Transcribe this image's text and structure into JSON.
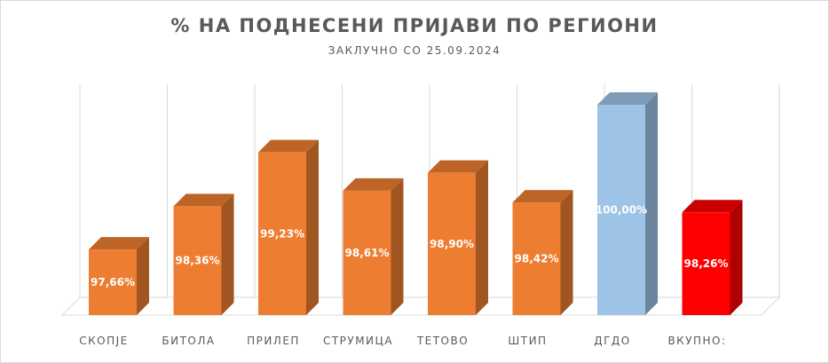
{
  "chart_data": {
    "type": "bar",
    "title": "% НА ПОДНЕСЕНИ ПРИЈАВИ ПО РЕГИОНИ",
    "subtitle": "ЗАКЛУЧНО СО 25.09.2024",
    "categories": [
      "СКОПЈЕ",
      "БИТОЛА",
      "ПРИЛЕП",
      "СТРУМИЦА",
      "ТЕТОВО",
      "ШТИП",
      "ДГДО",
      "ВКУПНО:"
    ],
    "values": [
      97.66,
      98.36,
      99.23,
      98.61,
      98.9,
      98.42,
      100.0,
      98.26
    ],
    "data_labels": [
      "97,66%",
      "98,36%",
      "99,23%",
      "98,61%",
      "98,90%",
      "98,42%",
      "100,00%",
      "98,26%"
    ],
    "bar_colors": [
      "#ED7D31",
      "#ED7D31",
      "#ED7D31",
      "#ED7D31",
      "#ED7D31",
      "#ED7D31",
      "#9DC3E6",
      "#FF0000"
    ],
    "ylim": [
      96.6,
      100.0
    ],
    "grid": true,
    "legend": "none",
    "style": "3d-column"
  }
}
